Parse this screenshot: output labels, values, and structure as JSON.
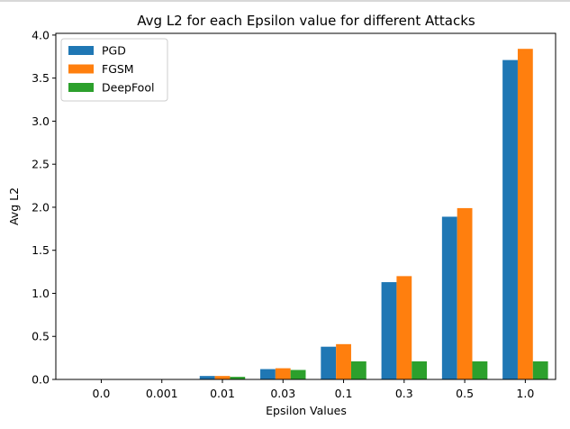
{
  "chart_data": {
    "type": "bar",
    "title": "Avg L2 for each Epsilon value for different Attacks",
    "xlabel": "Epsilon Values",
    "ylabel": "Avg L2",
    "categories": [
      "0.0",
      "0.001",
      "0.01",
      "0.03",
      "0.1",
      "0.3",
      "0.5",
      "1.0"
    ],
    "series": [
      {
        "name": "PGD",
        "color": "#1f77b4",
        "values": [
          0.0,
          0.002,
          0.04,
          0.12,
          0.38,
          1.13,
          1.89,
          3.71
        ]
      },
      {
        "name": "FGSM",
        "color": "#ff7f0e",
        "values": [
          0.0,
          0.002,
          0.04,
          0.13,
          0.41,
          1.2,
          1.99,
          3.84
        ]
      },
      {
        "name": "DeepFool",
        "color": "#2ca02c",
        "values": [
          0.0,
          0.001,
          0.03,
          0.11,
          0.21,
          0.21,
          0.21,
          0.21
        ]
      }
    ],
    "ylim": [
      0,
      4.02
    ],
    "yticks": [
      "0.0",
      "0.5",
      "1.0",
      "1.5",
      "2.0",
      "2.5",
      "3.0",
      "3.5",
      "4.0"
    ],
    "legend_position": "top-left",
    "grid": false
  }
}
